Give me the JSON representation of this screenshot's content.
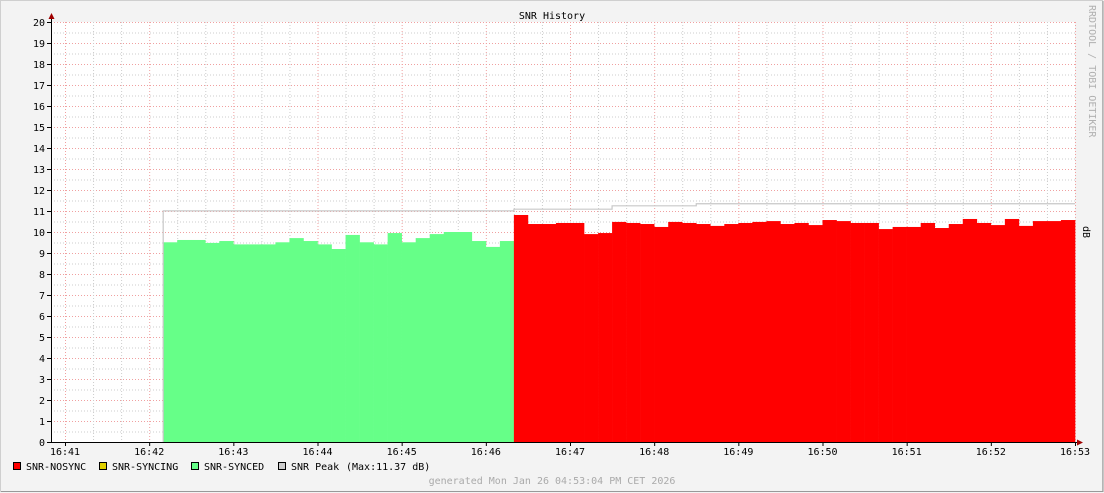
{
  "chart_data": {
    "type": "area",
    "title": "SNR History",
    "ylabel": "dB",
    "watermark": "RRDTOOL / TOBI OETIKER",
    "footer": "generated Mon Jan 26 04:53:04 PM CET 2026",
    "ylim": [
      0,
      20
    ],
    "xlim": [
      "16:41",
      "16:53"
    ],
    "yticks": [
      "0",
      "1",
      "2",
      "3",
      "4",
      "5",
      "6",
      "7",
      "8",
      "9",
      "10",
      "11",
      "12",
      "13",
      "14",
      "15",
      "16",
      "17",
      "18",
      "19",
      "20"
    ],
    "xticks": [
      "16:41",
      "16:42",
      "16:43",
      "16:44",
      "16:45",
      "16:46",
      "16:47",
      "16:48",
      "16:49",
      "16:50",
      "16:51",
      "16:52",
      "16:53"
    ],
    "grid": true,
    "step_seconds": 10,
    "legend_position": "bottom-left",
    "legend": [
      {
        "label": "SNR-NOSYNC",
        "color": "#ff0000"
      },
      {
        "label": "SNR-SYNCING",
        "color": "#e0d000"
      },
      {
        "label": "SNR-SYNCED",
        "color": "#66ff88"
      },
      {
        "label": "SNR Peak",
        "color": "#cccccc",
        "note": "(Max:11.37 dB)"
      }
    ],
    "series": [
      {
        "name": "SNR-SYNCED",
        "color": "#66ff88",
        "start": "16:42:10",
        "values": [
          9.51,
          9.62,
          9.62,
          9.48,
          9.57,
          9.41,
          9.41,
          9.41,
          9.51,
          9.71,
          9.57,
          9.41,
          9.19,
          9.86,
          9.51,
          9.41,
          9.95,
          9.51,
          9.71,
          9.9,
          10.0,
          10.0,
          9.57,
          9.29,
          9.57
        ]
      },
      {
        "name": "SNR-NOSYNC",
        "color": "#ff0000",
        "start": "16:46:20",
        "values": [
          10.81,
          10.38,
          10.38,
          10.43,
          10.43,
          9.9,
          9.95,
          10.48,
          10.43,
          10.38,
          10.24,
          10.48,
          10.43,
          10.38,
          10.29,
          10.38,
          10.43,
          10.48,
          10.52,
          10.38,
          10.43,
          10.33,
          10.57,
          10.52,
          10.43,
          10.43,
          10.14,
          10.24,
          10.24,
          10.43,
          10.19,
          10.38,
          10.62,
          10.43,
          10.33,
          10.62,
          10.29,
          10.52,
          10.52,
          10.57
        ]
      },
      {
        "name": "SNR Peak",
        "color": "#c8c8c8",
        "type": "step-line",
        "points": [
          [
            "16:42:10",
            11.03
          ],
          [
            "16:46:20",
            11.11
          ],
          [
            "16:47:30",
            11.27
          ],
          [
            "16:48:30",
            11.37
          ],
          [
            "16:53:00",
            11.37
          ]
        ]
      }
    ]
  }
}
